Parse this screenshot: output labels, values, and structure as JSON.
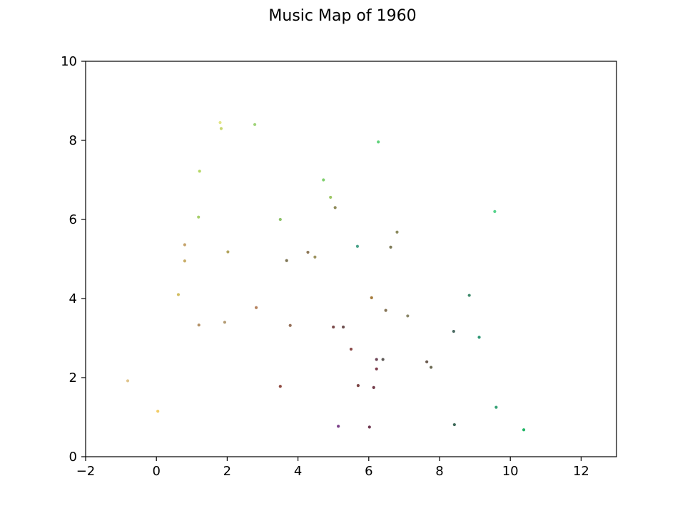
{
  "chart_data": {
    "type": "scatter",
    "title": "Music Map of 1960",
    "xlabel": "",
    "ylabel": "",
    "xlim": [
      -2,
      13
    ],
    "ylim": [
      0,
      10
    ],
    "grid": false,
    "x_ticks": [
      -2,
      0,
      2,
      4,
      6,
      8,
      10,
      12
    ],
    "y_ticks": [
      0,
      2,
      4,
      6,
      8,
      10
    ],
    "x_tick_labels": [
      "−2",
      "0",
      "2",
      "4",
      "6",
      "8",
      "10",
      "12"
    ],
    "y_tick_labels": [
      "0",
      "2",
      "4",
      "6",
      "8",
      "10"
    ],
    "points": [
      {
        "x": 1.8,
        "y": 8.45,
        "color": "#e3e68a"
      },
      {
        "x": 1.83,
        "y": 8.3,
        "color": "#c8d670"
      },
      {
        "x": 2.78,
        "y": 8.4,
        "color": "#9fd378"
      },
      {
        "x": 6.27,
        "y": 7.96,
        "color": "#5fd27a"
      },
      {
        "x": 1.22,
        "y": 7.22,
        "color": "#b5d765"
      },
      {
        "x": 4.72,
        "y": 7.0,
        "color": "#7fcf6d"
      },
      {
        "x": 4.92,
        "y": 6.56,
        "color": "#9dc765"
      },
      {
        "x": 5.05,
        "y": 6.3,
        "color": "#8e8a58"
      },
      {
        "x": 9.56,
        "y": 6.2,
        "color": "#56d38c"
      },
      {
        "x": 1.19,
        "y": 6.06,
        "color": "#a7cf6b"
      },
      {
        "x": 3.5,
        "y": 6.0,
        "color": "#8ec36a"
      },
      {
        "x": 6.8,
        "y": 5.68,
        "color": "#8c8b5f"
      },
      {
        "x": 0.8,
        "y": 5.36,
        "color": "#c5a36b"
      },
      {
        "x": 5.68,
        "y": 5.32,
        "color": "#4aa38a"
      },
      {
        "x": 6.62,
        "y": 5.3,
        "color": "#7e7a57"
      },
      {
        "x": 2.02,
        "y": 5.18,
        "color": "#b3a55f"
      },
      {
        "x": 4.28,
        "y": 5.17,
        "color": "#8c7656"
      },
      {
        "x": 4.48,
        "y": 5.05,
        "color": "#9e9461"
      },
      {
        "x": 3.68,
        "y": 4.96,
        "color": "#7f7755"
      },
      {
        "x": 0.8,
        "y": 4.95,
        "color": "#c8ad67"
      },
      {
        "x": 0.62,
        "y": 4.1,
        "color": "#d2bd61"
      },
      {
        "x": 8.84,
        "y": 4.08,
        "color": "#3e8a6b"
      },
      {
        "x": 6.08,
        "y": 4.02,
        "color": "#a57a3a"
      },
      {
        "x": 2.82,
        "y": 3.77,
        "color": "#b5825e"
      },
      {
        "x": 6.48,
        "y": 3.7,
        "color": "#867556"
      },
      {
        "x": 7.1,
        "y": 3.56,
        "color": "#8c886a"
      },
      {
        "x": 1.2,
        "y": 3.33,
        "color": "#b39167"
      },
      {
        "x": 1.93,
        "y": 3.4,
        "color": "#b39b73"
      },
      {
        "x": 3.78,
        "y": 3.32,
        "color": "#957059"
      },
      {
        "x": 5.0,
        "y": 3.28,
        "color": "#7c4b4b"
      },
      {
        "x": 5.28,
        "y": 3.28,
        "color": "#6e5050"
      },
      {
        "x": 8.4,
        "y": 3.17,
        "color": "#4a6a62"
      },
      {
        "x": 9.12,
        "y": 3.02,
        "color": "#2d9673"
      },
      {
        "x": 5.5,
        "y": 2.72,
        "color": "#8b4a48"
      },
      {
        "x": 6.22,
        "y": 2.46,
        "color": "#6e4758"
      },
      {
        "x": 6.4,
        "y": 2.46,
        "color": "#5d5855"
      },
      {
        "x": 7.64,
        "y": 2.4,
        "color": "#6a5a4e"
      },
      {
        "x": 7.76,
        "y": 2.26,
        "color": "#6b6a52"
      },
      {
        "x": 6.22,
        "y": 2.22,
        "color": "#7d3d4c"
      },
      {
        "x": -0.81,
        "y": 1.92,
        "color": "#e0c48c"
      },
      {
        "x": 3.5,
        "y": 1.78,
        "color": "#8f4a40"
      },
      {
        "x": 5.7,
        "y": 1.8,
        "color": "#7c4545"
      },
      {
        "x": 6.14,
        "y": 1.75,
        "color": "#743c4a"
      },
      {
        "x": 9.6,
        "y": 1.25,
        "color": "#36a276"
      },
      {
        "x": 0.04,
        "y": 1.15,
        "color": "#f2cc66"
      },
      {
        "x": 8.42,
        "y": 0.81,
        "color": "#3f6a5a"
      },
      {
        "x": 5.14,
        "y": 0.77,
        "color": "#7a3f88"
      },
      {
        "x": 6.02,
        "y": 0.75,
        "color": "#6e3850"
      },
      {
        "x": 10.38,
        "y": 0.68,
        "color": "#22b566"
      }
    ]
  }
}
